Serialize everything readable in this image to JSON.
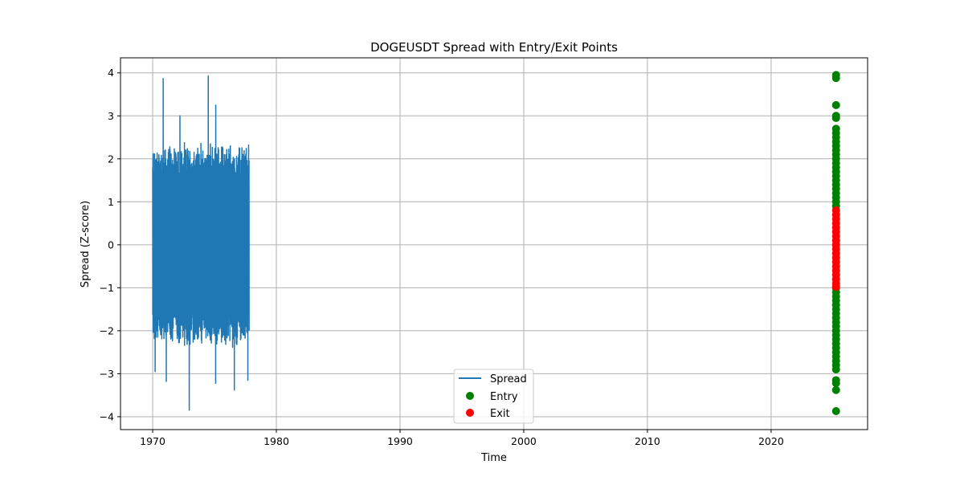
{
  "chart_data": {
    "type": "line",
    "title": "DOGEUSDT Spread with Entry/Exit Points",
    "xlabel": "Time",
    "ylabel": "Spread (Z-score)",
    "xlim": [
      1967.4,
      2027.8
    ],
    "ylim": [
      -4.3,
      4.35
    ],
    "x_ticks": [
      1970,
      1980,
      1990,
      2000,
      2010,
      2020
    ],
    "x_tick_labels": [
      "1970",
      "1980",
      "1990",
      "2000",
      "2010",
      "2020"
    ],
    "y_ticks": [
      -4,
      -3,
      -2,
      -1,
      0,
      1,
      2,
      3,
      4
    ],
    "y_tick_labels": [
      "−4",
      "−3",
      "−2",
      "−1",
      "0",
      "1",
      "2",
      "3",
      "4"
    ],
    "grid": true,
    "legend_position": "bottom-center",
    "colors": {
      "spread": "#1f77b4",
      "entry": "#008000",
      "exit": "#ff0000"
    },
    "series": [
      {
        "name": "Spread",
        "kind": "line",
        "x_range": [
          1970.0,
          1977.8
        ],
        "y_range": [
          -3.85,
          3.93
        ],
        "peaks": [
          {
            "x": 1970.05,
            "y": 2.12
          },
          {
            "x": 1970.2,
            "y": -2.95
          },
          {
            "x": 1970.85,
            "y": 3.87
          },
          {
            "x": 1971.1,
            "y": -3.18
          },
          {
            "x": 1972.2,
            "y": 3.0
          },
          {
            "x": 1972.95,
            "y": -3.85
          },
          {
            "x": 1974.5,
            "y": 3.93
          },
          {
            "x": 1975.1,
            "y": 3.25
          },
          {
            "x": 1975.1,
            "y": -3.22
          },
          {
            "x": 1976.6,
            "y": -3.38
          },
          {
            "x": 1977.7,
            "y": -3.15
          }
        ]
      },
      {
        "name": "Entry",
        "kind": "scatter",
        "x": 2025.25,
        "y_values": [
          3.95,
          3.88,
          3.25,
          3.0,
          2.95,
          2.7,
          2.6,
          2.5,
          2.4,
          2.3,
          2.2,
          2.1,
          2.0,
          1.9,
          1.8,
          1.7,
          1.6,
          1.5,
          1.4,
          1.3,
          1.2,
          1.1,
          1.0,
          0.9,
          -1.0,
          -1.1,
          -1.2,
          -1.3,
          -1.4,
          -1.5,
          -1.6,
          -1.7,
          -1.8,
          -1.9,
          -2.0,
          -2.1,
          -2.2,
          -2.3,
          -2.4,
          -2.5,
          -2.6,
          -2.7,
          -2.8,
          -2.9,
          -3.15,
          -3.22,
          -3.38,
          -3.87
        ]
      },
      {
        "name": "Exit",
        "kind": "scatter",
        "x": 2025.25,
        "y_values": [
          0.8,
          0.7,
          0.6,
          0.5,
          0.4,
          0.3,
          0.2,
          0.1,
          0.0,
          -0.1,
          -0.2,
          -0.3,
          -0.4,
          -0.5,
          -0.6,
          -0.7,
          -0.8,
          -0.9,
          -0.98
        ]
      }
    ]
  }
}
